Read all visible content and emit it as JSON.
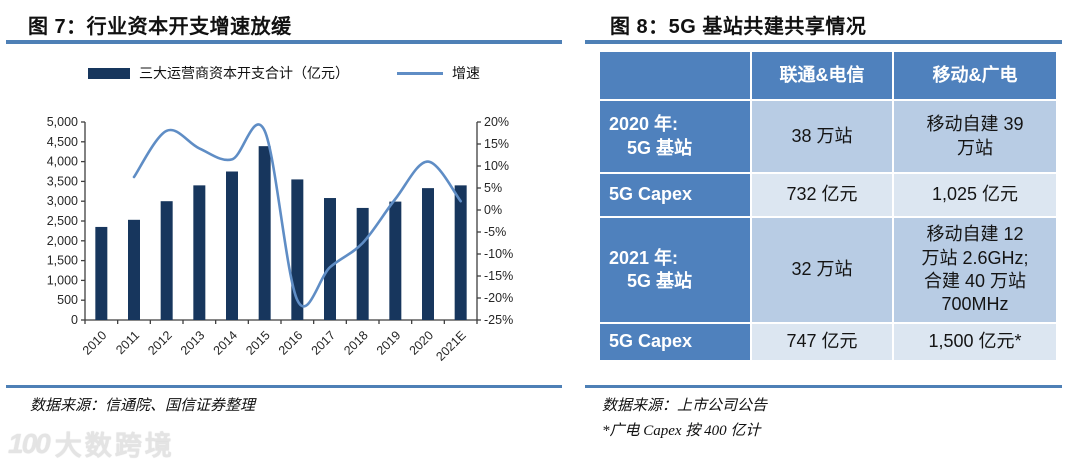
{
  "colors": {
    "bar": "#17365d",
    "line": "#5f8dc5",
    "rule": "#4e80b6",
    "table_header": "#4f81bd",
    "row_dark": "#b8cce4",
    "row_light": "#dce6f1",
    "axis_text": "#262626"
  },
  "fig7": {
    "title": "图 7：行业资本开支增速放缓",
    "legend": [
      {
        "label": "三大运营商资本开支合计（亿元）",
        "type": "bar"
      },
      {
        "label": "增速",
        "type": "line"
      }
    ],
    "source": "数据来源：信通院、国信证券整理"
  },
  "chart_data": {
    "type": "bar+line combo",
    "categories": [
      "2010",
      "2011",
      "2012",
      "2013",
      "2014",
      "2015",
      "2016",
      "2017",
      "2018",
      "2019",
      "2020",
      "2021E"
    ],
    "series": [
      {
        "name": "三大运营商资本开支合计（亿元）",
        "type": "bar",
        "axis": "left",
        "values": [
          2350,
          2530,
          3000,
          3400,
          3750,
          4390,
          3550,
          3080,
          2830,
          2990,
          3330,
          3400
        ]
      },
      {
        "name": "增速",
        "type": "line",
        "axis": "right",
        "values": [
          null,
          7.5,
          18,
          14,
          11.5,
          18,
          -20.5,
          -13,
          -7.5,
          2.5,
          11,
          2
        ]
      }
    ],
    "left_axis": {
      "min": 0,
      "max": 5000,
      "step": 500,
      "format": "thousands"
    },
    "right_axis": {
      "min": -25,
      "max": 20,
      "step": 5,
      "format": "percent"
    },
    "grid": false,
    "legend_position": "top"
  },
  "fig8": {
    "title": "图 8：5G 基站共建共享情况",
    "table": {
      "header": [
        "",
        "联通&电信",
        "移动&广电"
      ],
      "rows": [
        {
          "label": "2020 年:\n　5G 基站",
          "col1": "38 万站",
          "col2": "移动自建 39\n万站"
        },
        {
          "label": "5G Capex",
          "col1": "732 亿元",
          "col2": "1,025 亿元"
        },
        {
          "label": "2021 年:\n　5G 基站",
          "col1": "32 万站",
          "col2": "移动自建 12\n万站 2.6GHz;\n合建 40 万站\n700MHz"
        },
        {
          "label": "5G Capex",
          "col1": "747 亿元",
          "col2": "1,500 亿元*"
        }
      ]
    },
    "source": "数据来源：上市公司公告",
    "footnote": "*广电 Capex 按 400 亿计"
  },
  "watermark": {
    "logo": "100",
    "text": "大数跨境"
  }
}
